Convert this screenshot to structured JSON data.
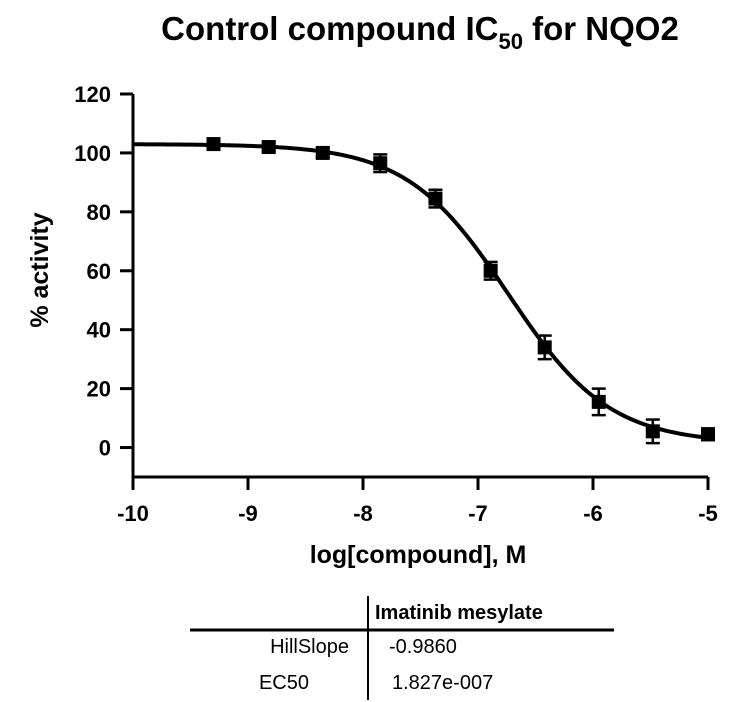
{
  "chart_data": {
    "type": "scatter",
    "title": "Control compound  IC",
    "title_subscript": "50",
    "title_suffix": " for  NQO2",
    "xlabel": "log[compound], M",
    "ylabel": "% activity",
    "xlim": [
      -10,
      -5
    ],
    "ylim": [
      -10,
      120
    ],
    "x_ticks": [
      -10,
      -9,
      -8,
      -7,
      -6,
      -5
    ],
    "y_ticks": [
      0,
      20,
      40,
      60,
      80,
      100,
      120
    ],
    "grid": false,
    "series": [
      {
        "x": [
          -9.3,
          -8.82,
          -8.35,
          -7.85,
          -7.37,
          -6.89,
          -6.42,
          -5.95,
          -5.48,
          -5.0
        ],
        "y": [
          103,
          102,
          100,
          96.5,
          84.5,
          60,
          34,
          15.5,
          5.5,
          4.5
        ],
        "error": [
          1.5,
          1.5,
          1.5,
          3,
          3,
          3,
          4,
          4.5,
          4,
          2
        ],
        "fit": {
          "model": "log(inhibitor) vs. response -- variable slope",
          "top": 103,
          "bottom": 1.4,
          "log_ec50": -6.7383,
          "hill_slope": -0.986
        }
      }
    ],
    "results_table": {
      "column_header": "Imatinib mesylate",
      "rows": [
        {
          "label": "HillSlope",
          "value": "-0.9860"
        },
        {
          "label": "EC50",
          "value": "1.827e-007"
        }
      ]
    }
  }
}
